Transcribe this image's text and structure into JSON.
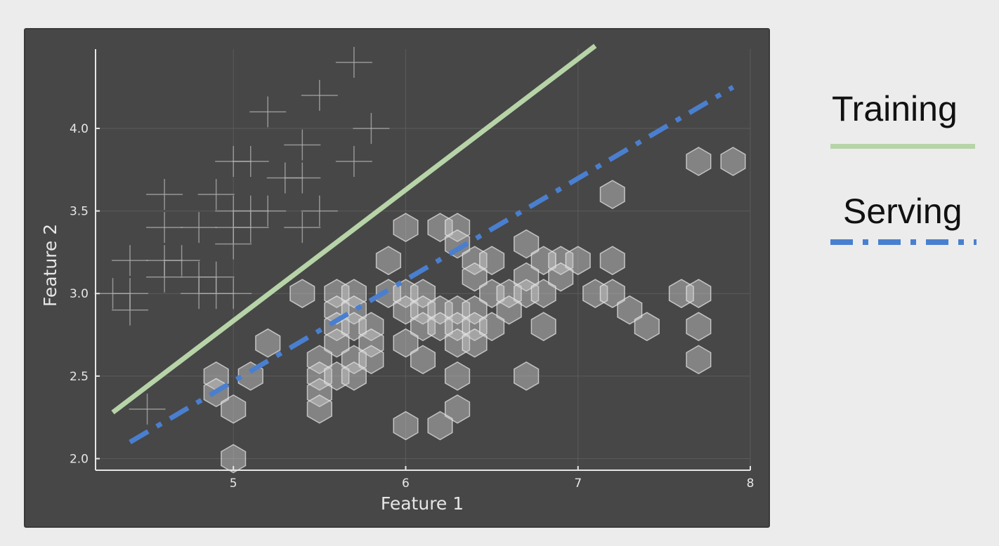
{
  "legend": {
    "training_label": "Training",
    "serving_label": "Serving"
  },
  "colors": {
    "background": "#ececec",
    "panel": "#474747",
    "grid": "#5b5b5b",
    "axis": "#e6e6e6",
    "tick_text": "#e6e6e6",
    "training": "#b7d4a8",
    "serving": "#4a7fcf",
    "hexagon_fill": "rgba(205,205,205,0.45)",
    "hexagon_stroke": "rgba(235,235,235,0.7)",
    "cross": "rgba(175,175,175,0.75)"
  },
  "chart_data": {
    "type": "scatter",
    "xlabel": "Feature 1",
    "ylabel": "Feature 2",
    "xlim": [
      4.2,
      8.0
    ],
    "ylim": [
      1.93,
      4.48
    ],
    "xticks": [
      5,
      6,
      7,
      8
    ],
    "yticks": [
      2.0,
      2.5,
      3.0,
      3.5,
      4.0
    ],
    "xtick_labels": [
      "5",
      "6",
      "7",
      "8"
    ],
    "ytick_labels": [
      "2.0",
      "2.5",
      "3.0",
      "3.5",
      "4.0"
    ],
    "grid": true,
    "series": [
      {
        "marker": "cross",
        "points": [
          [
            5.7,
            4.4
          ],
          [
            5.5,
            4.2
          ],
          [
            5.2,
            4.1
          ],
          [
            5.8,
            4.0
          ],
          [
            5.4,
            3.9
          ],
          [
            5.0,
            3.8
          ],
          [
            5.7,
            3.8
          ],
          [
            5.3,
            3.7
          ],
          [
            5.1,
            3.8
          ],
          [
            5.4,
            3.7
          ],
          [
            4.6,
            3.6
          ],
          [
            4.9,
            3.6
          ],
          [
            5.1,
            3.5
          ],
          [
            5.0,
            3.5
          ],
          [
            5.2,
            3.5
          ],
          [
            5.5,
            3.5
          ],
          [
            4.6,
            3.4
          ],
          [
            4.8,
            3.4
          ],
          [
            5.0,
            3.4
          ],
          [
            5.1,
            3.4
          ],
          [
            5.4,
            3.4
          ],
          [
            5.0,
            3.3
          ],
          [
            4.4,
            3.2
          ],
          [
            4.6,
            3.2
          ],
          [
            4.7,
            3.2
          ],
          [
            4.9,
            3.1
          ],
          [
            4.6,
            3.1
          ],
          [
            4.8,
            3.0
          ],
          [
            4.9,
            3.0
          ],
          [
            5.0,
            3.0
          ],
          [
            4.3,
            3.0
          ],
          [
            4.4,
            3.0
          ],
          [
            4.8,
            3.1
          ],
          [
            4.4,
            2.9
          ],
          [
            4.5,
            2.3
          ]
        ]
      },
      {
        "marker": "hexagon",
        "points": [
          [
            7.7,
            3.8
          ],
          [
            7.9,
            3.8
          ],
          [
            7.2,
            3.6
          ],
          [
            6.0,
            3.4
          ],
          [
            6.2,
            3.4
          ],
          [
            6.3,
            3.4
          ],
          [
            6.3,
            3.3
          ],
          [
            6.7,
            3.3
          ],
          [
            5.9,
            3.2
          ],
          [
            6.4,
            3.2
          ],
          [
            6.5,
            3.2
          ],
          [
            6.9,
            3.2
          ],
          [
            7.0,
            3.2
          ],
          [
            7.2,
            3.2
          ],
          [
            6.8,
            3.2
          ],
          [
            6.4,
            3.1
          ],
          [
            6.7,
            3.1
          ],
          [
            6.9,
            3.1
          ],
          [
            5.4,
            3.0
          ],
          [
            5.6,
            3.0
          ],
          [
            5.7,
            3.0
          ],
          [
            5.9,
            3.0
          ],
          [
            6.0,
            3.0
          ],
          [
            6.1,
            3.0
          ],
          [
            6.5,
            3.0
          ],
          [
            6.6,
            3.0
          ],
          [
            6.7,
            3.0
          ],
          [
            6.8,
            3.0
          ],
          [
            7.1,
            3.0
          ],
          [
            7.2,
            3.0
          ],
          [
            7.6,
            3.0
          ],
          [
            7.7,
            3.0
          ],
          [
            5.6,
            2.9
          ],
          [
            5.7,
            2.9
          ],
          [
            6.0,
            2.9
          ],
          [
            6.1,
            2.9
          ],
          [
            6.2,
            2.9
          ],
          [
            6.3,
            2.9
          ],
          [
            6.4,
            2.9
          ],
          [
            6.6,
            2.9
          ],
          [
            7.3,
            2.9
          ],
          [
            5.6,
            2.8
          ],
          [
            5.7,
            2.8
          ],
          [
            5.8,
            2.8
          ],
          [
            6.1,
            2.8
          ],
          [
            6.2,
            2.8
          ],
          [
            6.3,
            2.8
          ],
          [
            6.4,
            2.8
          ],
          [
            6.5,
            2.8
          ],
          [
            6.8,
            2.8
          ],
          [
            7.4,
            2.8
          ],
          [
            7.7,
            2.8
          ],
          [
            5.2,
            2.7
          ],
          [
            5.6,
            2.7
          ],
          [
            5.8,
            2.7
          ],
          [
            6.0,
            2.7
          ],
          [
            6.3,
            2.7
          ],
          [
            6.4,
            2.7
          ],
          [
            5.5,
            2.6
          ],
          [
            5.7,
            2.6
          ],
          [
            5.8,
            2.6
          ],
          [
            6.1,
            2.6
          ],
          [
            7.7,
            2.6
          ],
          [
            4.9,
            2.5
          ],
          [
            5.1,
            2.5
          ],
          [
            5.5,
            2.5
          ],
          [
            5.6,
            2.5
          ],
          [
            5.7,
            2.5
          ],
          [
            6.3,
            2.5
          ],
          [
            6.7,
            2.5
          ],
          [
            4.9,
            2.4
          ],
          [
            5.5,
            2.4
          ],
          [
            5.5,
            2.3
          ],
          [
            5.0,
            2.3
          ],
          [
            6.3,
            2.3
          ],
          [
            6.0,
            2.2
          ],
          [
            6.2,
            2.2
          ],
          [
            5.0,
            2.0
          ]
        ]
      }
    ],
    "lines": [
      {
        "name": "Training",
        "style": "solid",
        "from": [
          4.3,
          2.28
        ],
        "to": [
          7.1,
          4.5
        ]
      },
      {
        "name": "Serving",
        "style": "dash-dot",
        "from": [
          4.4,
          2.1
        ],
        "to": [
          7.9,
          4.25
        ]
      }
    ]
  }
}
